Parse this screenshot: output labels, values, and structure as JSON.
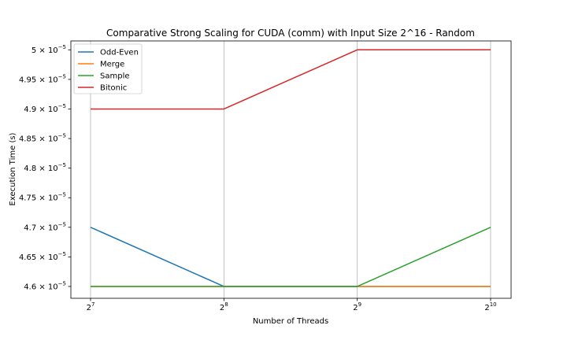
{
  "chart_data": {
    "type": "line",
    "title": "Comparative Strong Scaling for CUDA (comm) with Input Size 2^16 - Random",
    "xlabel": "Number of Threads",
    "ylabel": "Execution Time (s)",
    "x_scale": "log2",
    "x": [
      128,
      256,
      512,
      1024
    ],
    "x_tick_labels": [
      {
        "base": "2",
        "exp": "7"
      },
      {
        "base": "2",
        "exp": "8"
      },
      {
        "base": "2",
        "exp": "9"
      },
      {
        "base": "2",
        "exp": "10"
      }
    ],
    "ylim": [
      4.58e-05,
      5.015e-05
    ],
    "y_ticks": [
      {
        "value": 4.6e-05,
        "mantissa": "4.6 × 10",
        "exp": "−5"
      },
      {
        "value": 4.65e-05,
        "mantissa": "4.65 × 10",
        "exp": "−5"
      },
      {
        "value": 4.7e-05,
        "mantissa": "4.7 × 10",
        "exp": "−5"
      },
      {
        "value": 4.75e-05,
        "mantissa": "4.75 × 10",
        "exp": "−5"
      },
      {
        "value": 4.8e-05,
        "mantissa": "4.8 × 10",
        "exp": "−5"
      },
      {
        "value": 4.85e-05,
        "mantissa": "4.85 × 10",
        "exp": "−5"
      },
      {
        "value": 4.9e-05,
        "mantissa": "4.9 × 10",
        "exp": "−5"
      },
      {
        "value": 4.95e-05,
        "mantissa": "4.95 × 10",
        "exp": "−5"
      },
      {
        "value": 5e-05,
        "mantissa": "5 × 10",
        "exp": "−5"
      }
    ],
    "grid": "x-only",
    "legend_position": "top-left",
    "series": [
      {
        "name": "Odd-Even",
        "color": "#1f77b4",
        "values": [
          4.7e-05,
          4.6e-05,
          4.6e-05,
          4.6e-05
        ]
      },
      {
        "name": "Merge",
        "color": "#ff7f0e",
        "values": [
          4.6e-05,
          4.6e-05,
          4.6e-05,
          4.6e-05
        ]
      },
      {
        "name": "Sample",
        "color": "#2ca02c",
        "values": [
          4.6e-05,
          4.6e-05,
          4.6e-05,
          4.7e-05
        ]
      },
      {
        "name": "Bitonic",
        "color": "#d62728",
        "values": [
          4.9e-05,
          4.9e-05,
          5e-05,
          5e-05
        ]
      }
    ]
  }
}
